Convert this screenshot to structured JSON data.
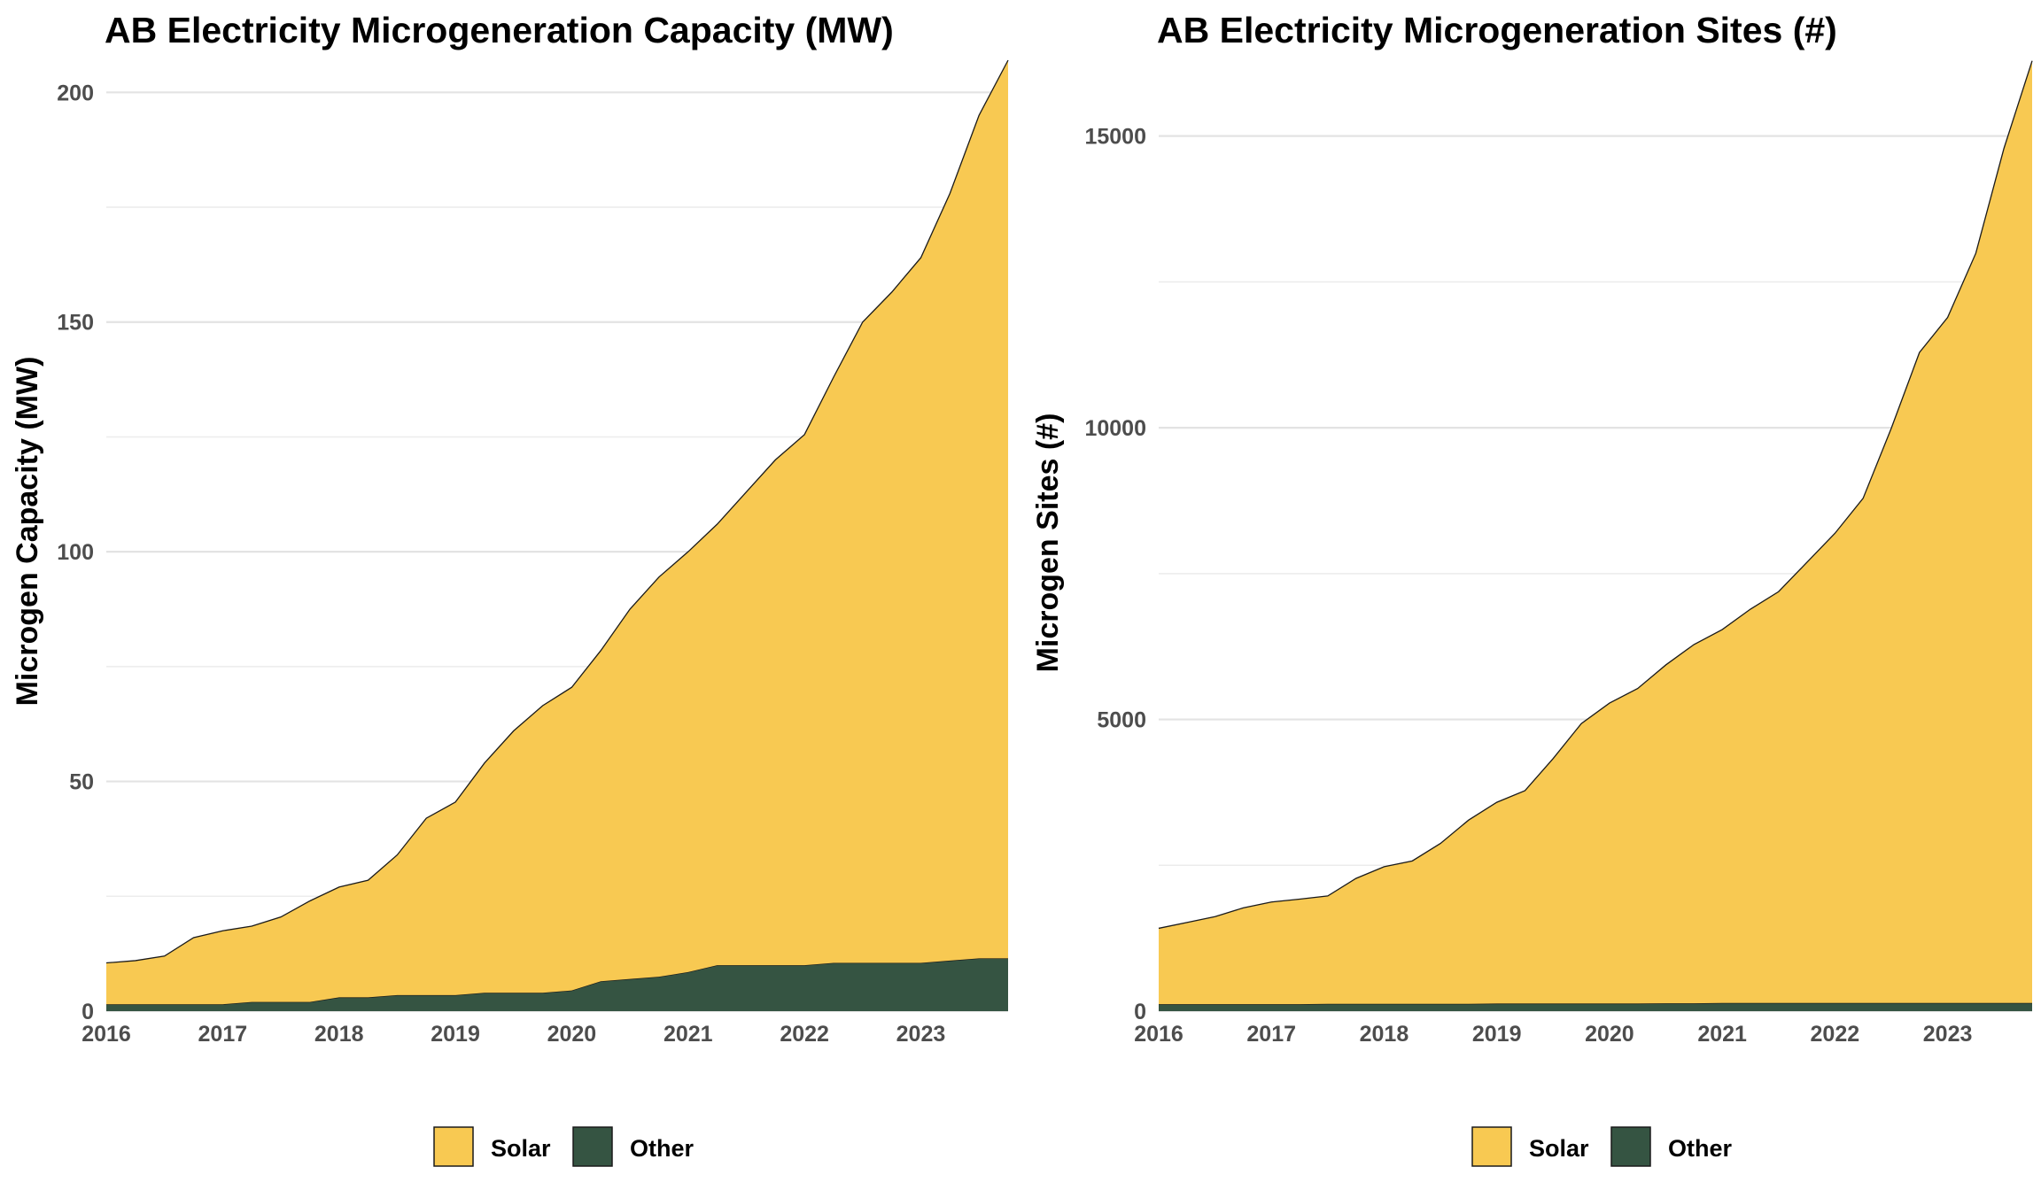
{
  "colors": {
    "Solar": "#F8C952",
    "Other": "#355442",
    "grid": "#e3e3e3",
    "outline": "#1a1a1a"
  },
  "chart_data": [
    {
      "type": "area",
      "stacked": true,
      "title": "AB Electricity Microgeneration Capacity (MW)",
      "xlabel": "",
      "ylabel": "Microgen Capacity (MW)",
      "xlim": [
        2016,
        2023.75
      ],
      "ylim": [
        0,
        207
      ],
      "y_major_ticks": [
        0,
        50,
        100,
        150,
        200
      ],
      "y_minor_gridlines": [
        25,
        75,
        125,
        175
      ],
      "x_ticks": [
        "2016",
        "2017",
        "2018",
        "2019",
        "2020",
        "2021",
        "2022",
        "2023"
      ],
      "grid": true,
      "legend": "bottom",
      "x": [
        2016,
        2016.25,
        2016.5,
        2016.75,
        2017,
        2017.25,
        2017.5,
        2017.75,
        2018,
        2018.25,
        2018.5,
        2018.75,
        2019,
        2019.25,
        2019.5,
        2019.75,
        2020,
        2020.25,
        2020.5,
        2020.75,
        2021,
        2021.25,
        2021.5,
        2021.75,
        2022,
        2022.25,
        2022.5,
        2022.75,
        2023,
        2023.25,
        2023.5,
        2023.75
      ],
      "series": [
        {
          "name": "Other",
          "values": [
            1.5,
            1.5,
            1.5,
            1.5,
            1.5,
            2,
            2,
            2,
            3,
            3,
            3.5,
            3.5,
            3.5,
            4,
            4,
            4,
            4.5,
            6.5,
            7,
            7.5,
            8.5,
            10,
            10,
            10,
            10,
            10.5,
            10.5,
            10.5,
            10.5,
            11,
            11.5,
            11.5
          ]
        },
        {
          "name": "Solar",
          "values": [
            9,
            9.5,
            10.5,
            14.5,
            16,
            16.5,
            18.5,
            22,
            24,
            25.5,
            30.5,
            38.5,
            42,
            50,
            57,
            62.5,
            66,
            72,
            80.5,
            87,
            91.5,
            96,
            103,
            110,
            115.5,
            127.5,
            139.5,
            146,
            153.5,
            167,
            183.5,
            195.5
          ]
        }
      ]
    },
    {
      "type": "area",
      "stacked": true,
      "title": "AB Electricity Microgeneration Sites (#)",
      "xlabel": "",
      "ylabel": "Microgen Sites (#)",
      "xlim": [
        2016,
        2023.75
      ],
      "ylim": [
        0,
        16300
      ],
      "y_major_ticks": [
        0,
        5000,
        10000,
        15000
      ],
      "y_minor_gridlines": [
        2500,
        7500,
        12500
      ],
      "x_ticks": [
        "2016",
        "2017",
        "2018",
        "2019",
        "2020",
        "2021",
        "2022",
        "2023"
      ],
      "grid": true,
      "legend": "bottom",
      "x": [
        2016,
        2016.25,
        2016.5,
        2016.75,
        2017,
        2017.25,
        2017.5,
        2017.75,
        2018,
        2018.25,
        2018.5,
        2018.75,
        2019,
        2019.25,
        2019.5,
        2019.75,
        2020,
        2020.25,
        2020.5,
        2020.75,
        2021,
        2021.25,
        2021.5,
        2021.75,
        2022,
        2022.25,
        2022.5,
        2022.75,
        2023,
        2023.25,
        2023.5,
        2023.75
      ],
      "series": [
        {
          "name": "Other",
          "values": [
            120,
            120,
            120,
            120,
            120,
            120,
            125,
            125,
            125,
            125,
            125,
            125,
            130,
            130,
            130,
            130,
            130,
            130,
            135,
            135,
            140,
            140,
            140,
            140,
            140,
            140,
            140,
            140,
            140,
            140,
            140,
            140
          ]
        },
        {
          "name": "Solar",
          "values": [
            1300,
            1400,
            1500,
            1650,
            1750,
            1800,
            1850,
            2150,
            2350,
            2450,
            2750,
            3150,
            3450,
            3650,
            4200,
            4800,
            5150,
            5400,
            5800,
            6150,
            6400,
            6750,
            7050,
            7550,
            8050,
            8650,
            9850,
            11150,
            11750,
            12850,
            14650,
            16150
          ]
        }
      ]
    }
  ]
}
